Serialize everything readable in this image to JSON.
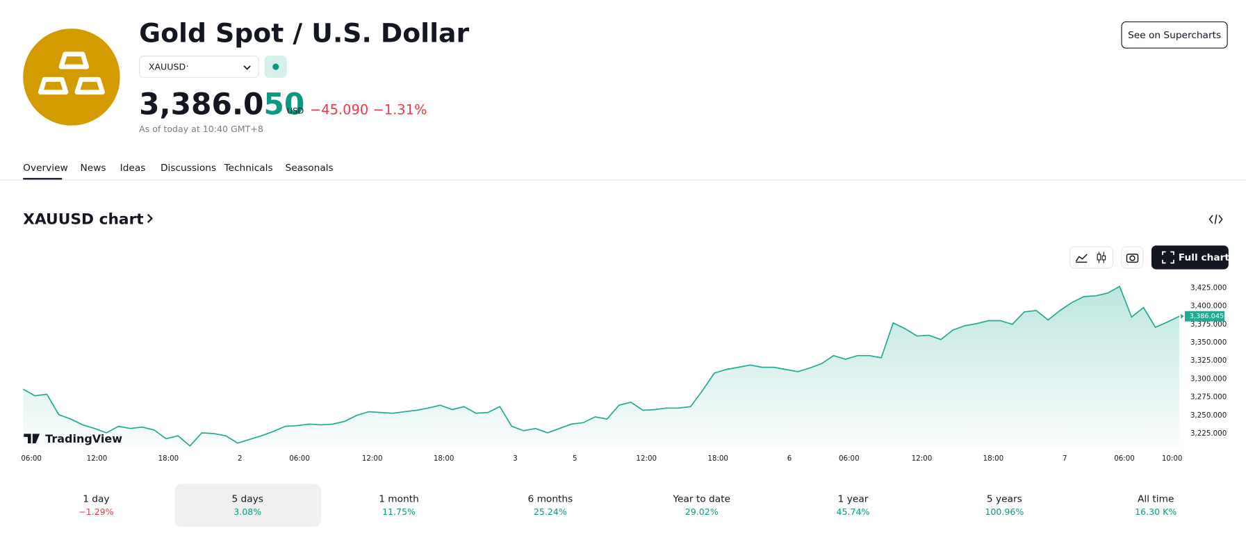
{
  "header": {
    "title": "Gold Spot / U.S. Dollar",
    "symbol": "XAUUSD",
    "symbol_dot": "·",
    "price_main": "3,386.0",
    "price_tail": "50",
    "currency": "USD",
    "change": "−45.090",
    "change_percent": "−1.31%",
    "as_of": "As of today at 10:40 GMT+8",
    "button": "See on Supercharts"
  },
  "tabs": [
    "Overview",
    "News",
    "Ideas",
    "Discussions",
    "Technicals",
    "Seasonals"
  ],
  "section_title": "XAUUSD chart",
  "full_chart": "Full chart",
  "chart_data": {
    "type": "area",
    "color": "#22ab94",
    "watermark": "TradingView",
    "values": [
      3286,
      3277,
      3279,
      3251,
      3245,
      3237,
      3232,
      3226,
      3235,
      3232,
      3234,
      3230,
      3218,
      3222,
      3208,
      3226,
      3225,
      3222,
      3212,
      3217,
      3222,
      3228,
      3235,
      3236,
      3238,
      3237,
      3238,
      3242,
      3250,
      3255,
      3254,
      3253,
      3255,
      3257,
      3260,
      3264,
      3258,
      3262,
      3253,
      3254,
      3262,
      3235,
      3229,
      3232,
      3226,
      3232,
      3238,
      3240,
      3248,
      3245,
      3264,
      3268,
      3257,
      3258,
      3260,
      3260,
      3262,
      3284,
      3308,
      3313,
      3316,
      3319,
      3316,
      3316,
      3313,
      3310,
      3315,
      3321,
      3332,
      3327,
      3332,
      3332,
      3329,
      3377,
      3369,
      3359,
      3360,
      3354,
      3367,
      3373,
      3376,
      3380,
      3380,
      3375,
      3392,
      3394,
      3381,
      3394,
      3405,
      3413,
      3414,
      3418,
      3427,
      3385,
      3398,
      3371,
      3378,
      3386
    ],
    "xlim": [
      0,
      97
    ],
    "xticks": [
      {
        "value": 0.7,
        "label": "06:00"
      },
      {
        "value": 6.2,
        "label": "12:00"
      },
      {
        "value": 12.2,
        "label": "18:00"
      },
      {
        "value": 18.2,
        "label": "2"
      },
      {
        "value": 23.2,
        "label": "06:00"
      },
      {
        "value": 29.3,
        "label": "12:00"
      },
      {
        "value": 35.3,
        "label": "18:00"
      },
      {
        "value": 41.3,
        "label": "3"
      },
      {
        "value": 46.3,
        "label": "5"
      },
      {
        "value": 52.3,
        "label": "12:00"
      },
      {
        "value": 58.3,
        "label": "18:00"
      },
      {
        "value": 64.3,
        "label": "6"
      },
      {
        "value": 69.3,
        "label": "06:00"
      },
      {
        "value": 75.4,
        "label": "12:00"
      },
      {
        "value": 81.4,
        "label": "18:00"
      },
      {
        "value": 87.4,
        "label": "7"
      },
      {
        "value": 92.4,
        "label": "06:00"
      },
      {
        "value": 96.4,
        "label": "10:00"
      }
    ],
    "ylim": [
      3204,
      3433
    ],
    "yticks": [
      {
        "value": 3225,
        "label": "3,225.000"
      },
      {
        "value": 3250,
        "label": "3,250.000"
      },
      {
        "value": 3275,
        "label": "3,275.000"
      },
      {
        "value": 3300,
        "label": "3,300.000"
      },
      {
        "value": 3325,
        "label": "3,325.000"
      },
      {
        "value": 3350,
        "label": "3,350.000"
      },
      {
        "value": 3375,
        "label": "3,375.000"
      },
      {
        "value": 3400,
        "label": "3,400.000"
      },
      {
        "value": 3425,
        "label": "3,425.000"
      }
    ],
    "last_price": {
      "value": 3386.045,
      "label": "3,386.045"
    }
  },
  "periods": [
    {
      "label": "1 day",
      "change": "−1.29%"
    },
    {
      "label": "5 days",
      "change": "3.08%"
    },
    {
      "label": "1 month",
      "change": "11.75%"
    },
    {
      "label": "6 months",
      "change": "25.24%"
    },
    {
      "label": "Year to date",
      "change": "29.02%"
    },
    {
      "label": "1 year",
      "change": "45.74%"
    },
    {
      "label": "5 years",
      "change": "100.96%"
    },
    {
      "label": "All time",
      "change": "16.30 K%"
    }
  ],
  "selected_period": 1
}
